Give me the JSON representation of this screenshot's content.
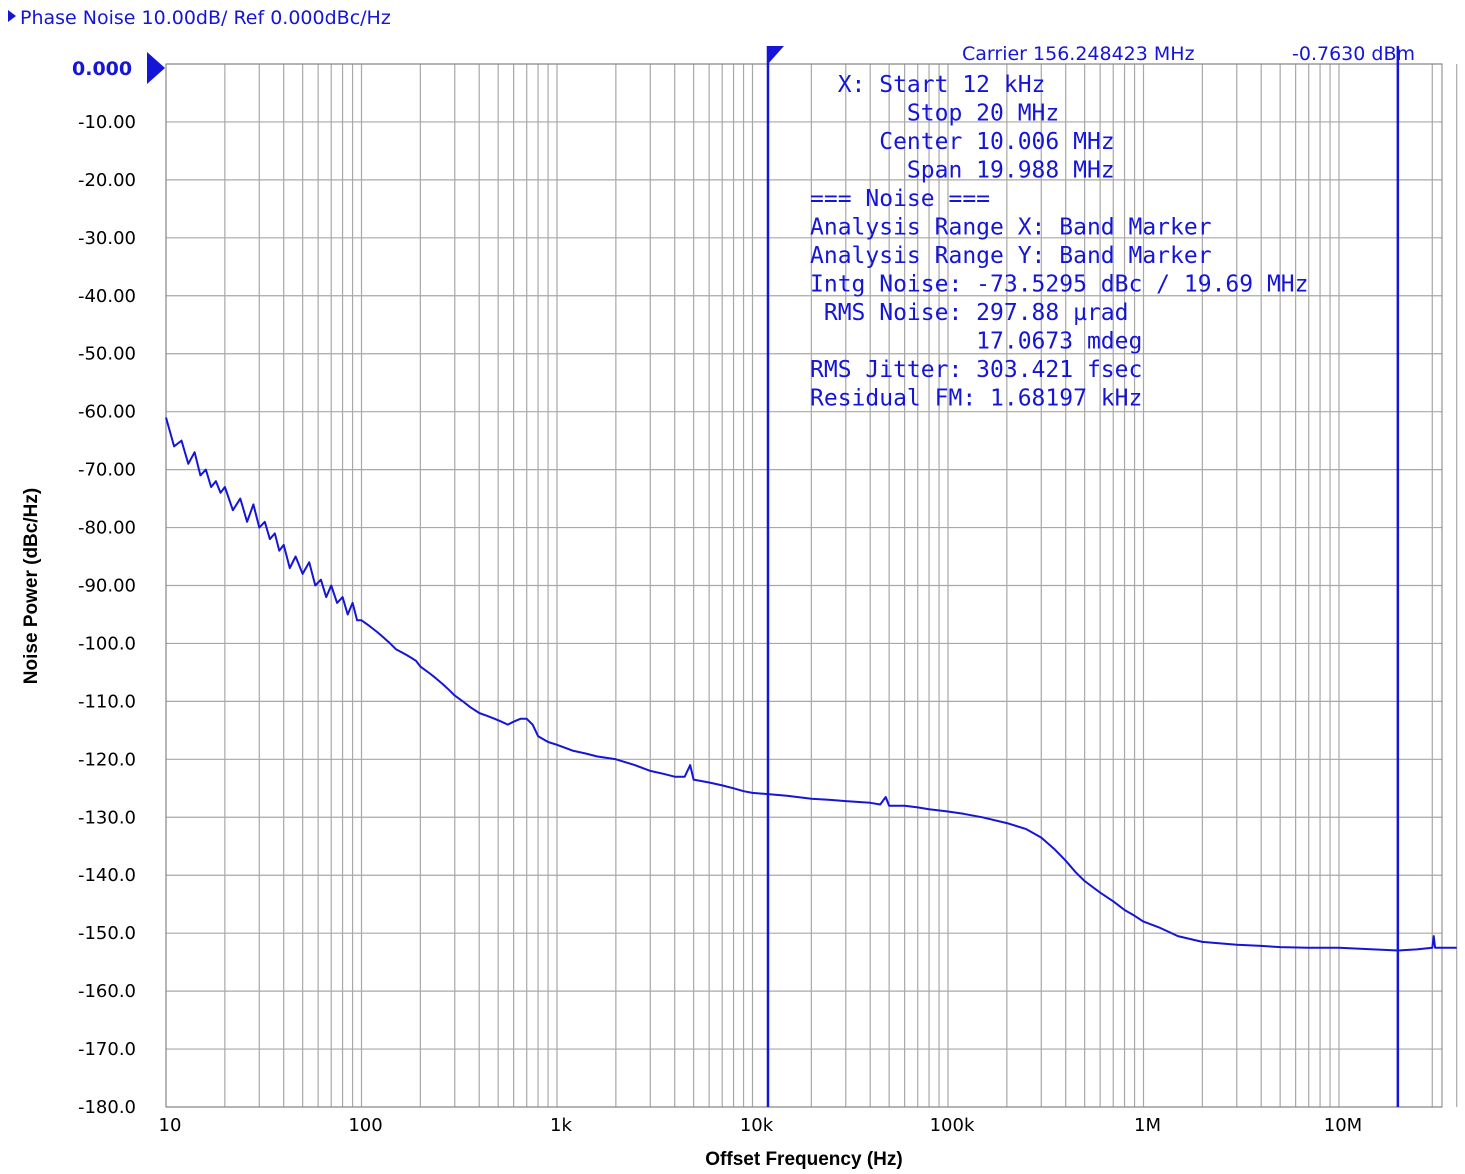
{
  "header": {
    "title_text": "Phase Noise 10.00dB/ Ref 0.000dBc/Hz",
    "carrier_text": "Carrier 156.248423 MHz",
    "power_text": "-0.7630 dBm",
    "ref_value": "0.000"
  },
  "info_panel": {
    "lines": [
      "  X: Start 12 kHz",
      "       Stop 20 MHz",
      "     Center 10.006 MHz",
      "       Span 19.988 MHz",
      "=== Noise ===",
      "Analysis Range X: Band Marker",
      "Analysis Range Y: Band Marker",
      "Intg Noise: -73.5295 dBc / 19.69 MHz",
      " RMS Noise: 297.88 µrad",
      "            17.0673 mdeg",
      "RMS Jitter: 303.421 fsec",
      "Residual FM: 1.68197 kHz"
    ]
  },
  "colors": {
    "trace": "#1515d8",
    "grid": "#a8a8a8",
    "text_blue": "#1515d8"
  },
  "chart_data": {
    "type": "line",
    "title": "Phase Noise 10.00dB/ Ref 0.000dBc/Hz",
    "xlabel": "Offset Frequency (Hz)",
    "ylabel": "Noise Power (dBc/Hz)",
    "x_scale": "log",
    "xlim": [
      10,
      40000000
    ],
    "ylim": [
      -180,
      0
    ],
    "grid": true,
    "x_ticks": [
      {
        "value": 10,
        "label": "10"
      },
      {
        "value": 100,
        "label": "100"
      },
      {
        "value": 1000,
        "label": "1k"
      },
      {
        "value": 10000,
        "label": "10k"
      },
      {
        "value": 100000,
        "label": "100k"
      },
      {
        "value": 1000000,
        "label": "1M"
      },
      {
        "value": 10000000,
        "label": "10M"
      }
    ],
    "y_ticks": [
      {
        "value": 0,
        "label": "0.000"
      },
      {
        "value": -10,
        "label": "-10.00"
      },
      {
        "value": -20,
        "label": "-20.00"
      },
      {
        "value": -30,
        "label": "-30.00"
      },
      {
        "value": -40,
        "label": "-40.00"
      },
      {
        "value": -50,
        "label": "-50.00"
      },
      {
        "value": -60,
        "label": "-60.00"
      },
      {
        "value": -70,
        "label": "-70.00"
      },
      {
        "value": -80,
        "label": "-80.00"
      },
      {
        "value": -90,
        "label": "-90.00"
      },
      {
        "value": -100,
        "label": "-100.0"
      },
      {
        "value": -110,
        "label": "-110.0"
      },
      {
        "value": -120,
        "label": "-120.0"
      },
      {
        "value": -130,
        "label": "-130.0"
      },
      {
        "value": -140,
        "label": "-140.0"
      },
      {
        "value": -150,
        "label": "-150.0"
      },
      {
        "value": -160,
        "label": "-160.0"
      },
      {
        "value": -170,
        "label": "-170.0"
      },
      {
        "value": -180,
        "label": "-180.0"
      }
    ],
    "markers": [
      {
        "x": 12000
      },
      {
        "x": 20000000
      }
    ],
    "series": [
      {
        "x": [
          10,
          11,
          12,
          13,
          14,
          15,
          16,
          17,
          18,
          19,
          20,
          22,
          24,
          26,
          28,
          30,
          32,
          34,
          36,
          38,
          40,
          43,
          46,
          50,
          54,
          58,
          62,
          66,
          70,
          75,
          80,
          85,
          90,
          95,
          100,
          110,
          120,
          130,
          140,
          150,
          160,
          170,
          180,
          190,
          200,
          220,
          240,
          260,
          280,
          300,
          330,
          360,
          400,
          440,
          480,
          520,
          560,
          600,
          650,
          700,
          750,
          800,
          900,
          1000,
          1200,
          1400,
          1600,
          2000,
          2500,
          3000,
          3500,
          4000,
          4500,
          4800,
          5000,
          6000,
          7000,
          8000,
          9000,
          10000,
          12000,
          15000,
          20000,
          25000,
          30000,
          40000,
          45000,
          48000,
          50000,
          60000,
          70000,
          80000,
          100000,
          120000,
          150000,
          200000,
          250000,
          300000,
          350000,
          400000,
          450000,
          500000,
          600000,
          700000,
          800000,
          900000,
          1000000,
          1200000,
          1500000,
          2000000,
          3000000,
          4000000,
          5000000,
          7000000,
          10000000,
          15000000,
          20000000,
          25000000,
          30000000,
          30500000,
          31000000,
          35000000,
          40000000
        ],
        "y": [
          -61,
          -66,
          -65,
          -69,
          -67,
          -71,
          -70,
          -73,
          -72,
          -74,
          -73,
          -77,
          -75,
          -79,
          -76,
          -80,
          -79,
          -82,
          -81,
          -84,
          -83,
          -87,
          -85,
          -88,
          -86,
          -90,
          -89,
          -92,
          -90,
          -93,
          -92,
          -95,
          -93,
          -96,
          -96,
          -97,
          -98,
          -99,
          -100,
          -101,
          -101.5,
          -102,
          -102.5,
          -103,
          -104,
          -105,
          -106,
          -107,
          -108,
          -109,
          -110,
          -111,
          -112,
          -112.5,
          -113,
          -113.5,
          -114,
          -113.5,
          -113,
          -113,
          -114,
          -116,
          -117,
          -117.5,
          -118.5,
          -119,
          -119.5,
          -120,
          -121,
          -122,
          -122.5,
          -123,
          -123,
          -121,
          -123.5,
          -124,
          -124.5,
          -125,
          -125.5,
          -125.8,
          -126,
          -126.3,
          -126.8,
          -127,
          -127.2,
          -127.5,
          -127.8,
          -126.5,
          -128,
          -128,
          -128.3,
          -128.6,
          -129,
          -129.4,
          -130,
          -131,
          -132,
          -133.5,
          -135.5,
          -137.5,
          -139.5,
          -141,
          -143,
          -144.5,
          -146,
          -147,
          -148,
          -149,
          -150.5,
          -151.5,
          -152,
          -152.2,
          -152.4,
          -152.5,
          -152.5,
          -152.8,
          -153,
          -152.8,
          -152.5,
          -150.5,
          -152.5,
          -152.5,
          -152.5
        ]
      }
    ]
  },
  "yaxis_label_text": "Noise Power (dBc/Hz)",
  "xaxis_label_text": "Offset Frequency (Hz)"
}
